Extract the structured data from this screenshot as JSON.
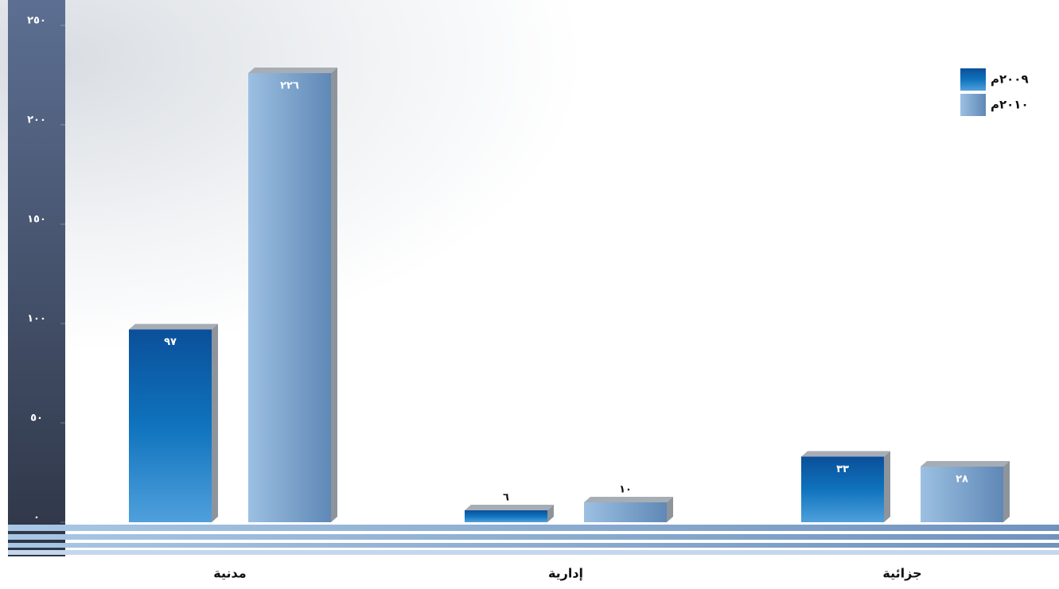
{
  "chart_data": {
    "type": "bar",
    "categories": [
      "مدنية",
      "إدارية",
      "جزائية"
    ],
    "series": [
      {
        "name": "٢٠٠٩م",
        "color": "#1565b0",
        "values": [
          97,
          6,
          33
        ],
        "value_labels": [
          "٩٧",
          "٦",
          "٣٣"
        ]
      },
      {
        "name": "٢٠١٠م",
        "color": "#7fa9d3",
        "values": [
          226,
          10,
          28
        ],
        "value_labels": [
          "٢٢٦",
          "١٠",
          "٢٨"
        ]
      }
    ],
    "ylim": [
      0,
      250
    ],
    "yticks": [
      {
        "value": 0,
        "label": "٠"
      },
      {
        "value": 50,
        "label": "٥٠"
      },
      {
        "value": 100,
        "label": "١٠٠"
      },
      {
        "value": 150,
        "label": "١٥٠"
      },
      {
        "value": 200,
        "label": "٢٠٠"
      },
      {
        "value": 250,
        "label": "٢٥٠"
      }
    ],
    "legend": "top-right"
  }
}
